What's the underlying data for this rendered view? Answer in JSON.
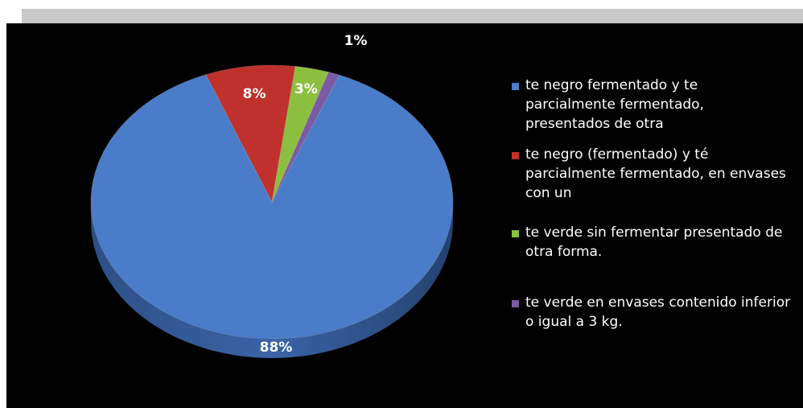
{
  "chart_data": {
    "type": "pie",
    "title": "",
    "categories": [
      "te negro fermentado y te parcialmente fermentado, presentados de otra",
      "te negro (fermentado) y té parcialmente fermentado, en envases con un",
      "te verde sin fermentar presentado de otra forma.",
      "te verde en envases contenido inferior o igual a 3 kg."
    ],
    "values": [
      88,
      8,
      3,
      1
    ],
    "data_labels": [
      "88%",
      "8%",
      "3%",
      "1%"
    ],
    "colors": [
      "#4a7cc9",
      "#c0302c",
      "#8cbf3f",
      "#7b5aa6"
    ],
    "legend_position": "right",
    "style": "3d-pie"
  }
}
